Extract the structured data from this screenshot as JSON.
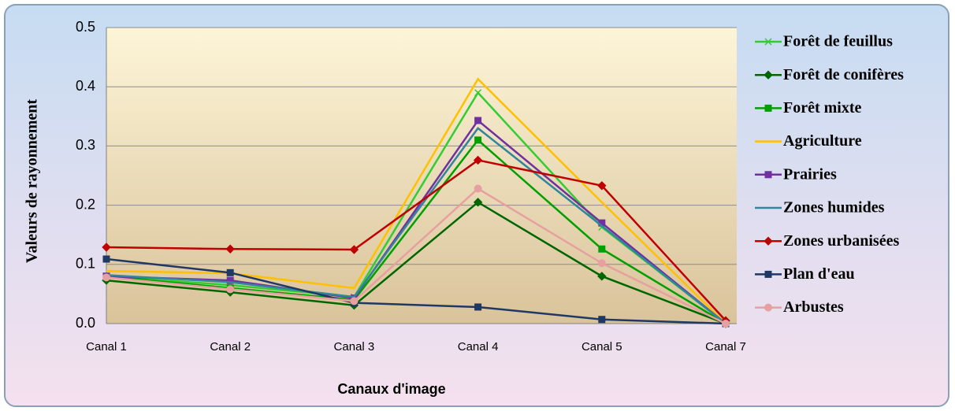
{
  "chart_data": {
    "type": "line",
    "xlabel": "Canaux d'image",
    "ylabel": "Valeurs  de rayonnement",
    "categories": [
      "Canal 1",
      "Canal 2",
      "Canal 3",
      "Canal 4",
      "Canal 5",
      "Canal 7"
    ],
    "ylim": [
      0,
      0.5
    ],
    "yticks": [
      {
        "value": 0,
        "label": "0.0"
      },
      0.1,
      0.2,
      0.3,
      0.4,
      0.5
    ],
    "grid": true,
    "legend": "right",
    "series": [
      {
        "name": "Forêt de feuillus",
        "color": "#33cc33",
        "marker": "x",
        "values": [
          0.08,
          0.065,
          0.045,
          0.39,
          0.163,
          0
        ]
      },
      {
        "name": "Forêt de conifères",
        "color": "#006600",
        "marker": "diamond",
        "values": [
          0.073,
          0.053,
          0.031,
          0.205,
          0.08,
          0
        ]
      },
      {
        "name": "Forêt mixte",
        "color": "#00a000",
        "marker": "square",
        "values": [
          0.08,
          0.06,
          0.04,
          0.31,
          0.126,
          0
        ]
      },
      {
        "name": "Agriculture",
        "color": "#ffc000",
        "marker": "none",
        "values": [
          0.089,
          0.085,
          0.06,
          0.413,
          0.205,
          0
        ]
      },
      {
        "name": "Prairies",
        "color": "#7030a0",
        "marker": "square",
        "values": [
          0.08,
          0.073,
          0.043,
          0.343,
          0.17,
          0
        ]
      },
      {
        "name": "Zones humides",
        "color": "#31859c",
        "marker": "none",
        "values": [
          0.082,
          0.07,
          0.045,
          0.33,
          0.165,
          0
        ]
      },
      {
        "name": "Zones urbanisées",
        "color": "#c00000",
        "marker": "diamond",
        "values": [
          0.129,
          0.126,
          0.125,
          0.276,
          0.233,
          0.005
        ]
      },
      {
        "name": "Plan d'eau",
        "color": "#1f3864",
        "marker": "square",
        "values": [
          0.109,
          0.086,
          0.035,
          0.028,
          0.007,
          0
        ]
      },
      {
        "name": "Arbustes",
        "color": "#e6a0a0",
        "marker": "circle",
        "values": [
          0.078,
          0.058,
          0.038,
          0.228,
          0.102,
          0
        ]
      }
    ]
  }
}
